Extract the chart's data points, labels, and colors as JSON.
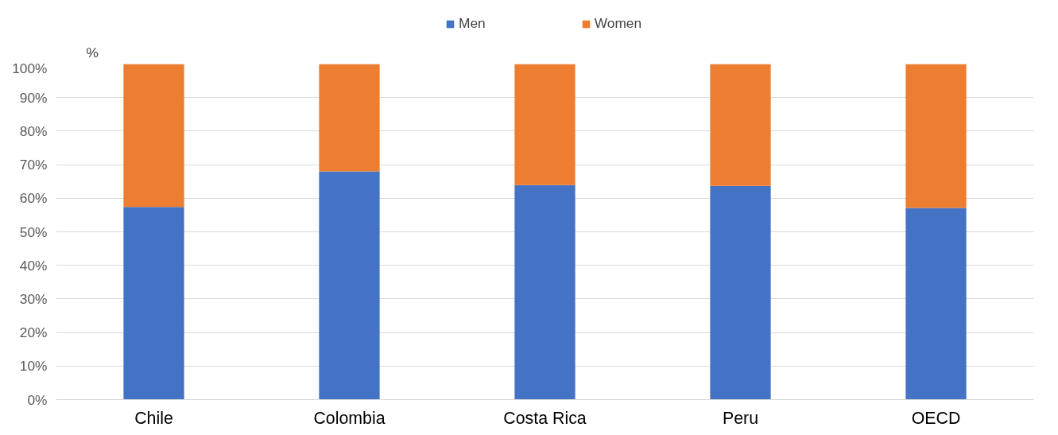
{
  "chart_data": {
    "type": "bar",
    "stacked": true,
    "ylabel": "%",
    "categories": [
      "Chile",
      "Colombia",
      "Costa Rica",
      "Peru",
      "OECD"
    ],
    "series": [
      {
        "name": "Men",
        "color": "#4472c4",
        "values": [
          57.4,
          68.0,
          63.9,
          63.7,
          57.1
        ]
      },
      {
        "name": "Women",
        "color": "#ed7d31",
        "values": [
          42.6,
          32.0,
          36.1,
          36.3,
          42.9
        ]
      }
    ],
    "ylim": [
      0,
      100
    ],
    "yticks": [
      {
        "value": 0,
        "label": "0%"
      },
      {
        "value": 10,
        "label": "10%"
      },
      {
        "value": 20,
        "label": "20%"
      },
      {
        "value": 30,
        "label": "30%"
      },
      {
        "value": 40,
        "label": "40%"
      },
      {
        "value": 50,
        "label": "50%"
      },
      {
        "value": 60,
        "label": "60%"
      },
      {
        "value": 70,
        "label": "70%"
      },
      {
        "value": 80,
        "label": "80%"
      },
      {
        "value": 90,
        "label": "90%"
      },
      {
        "value": 100,
        "label": "100%"
      }
    ],
    "grid": "y",
    "legend": "top"
  }
}
